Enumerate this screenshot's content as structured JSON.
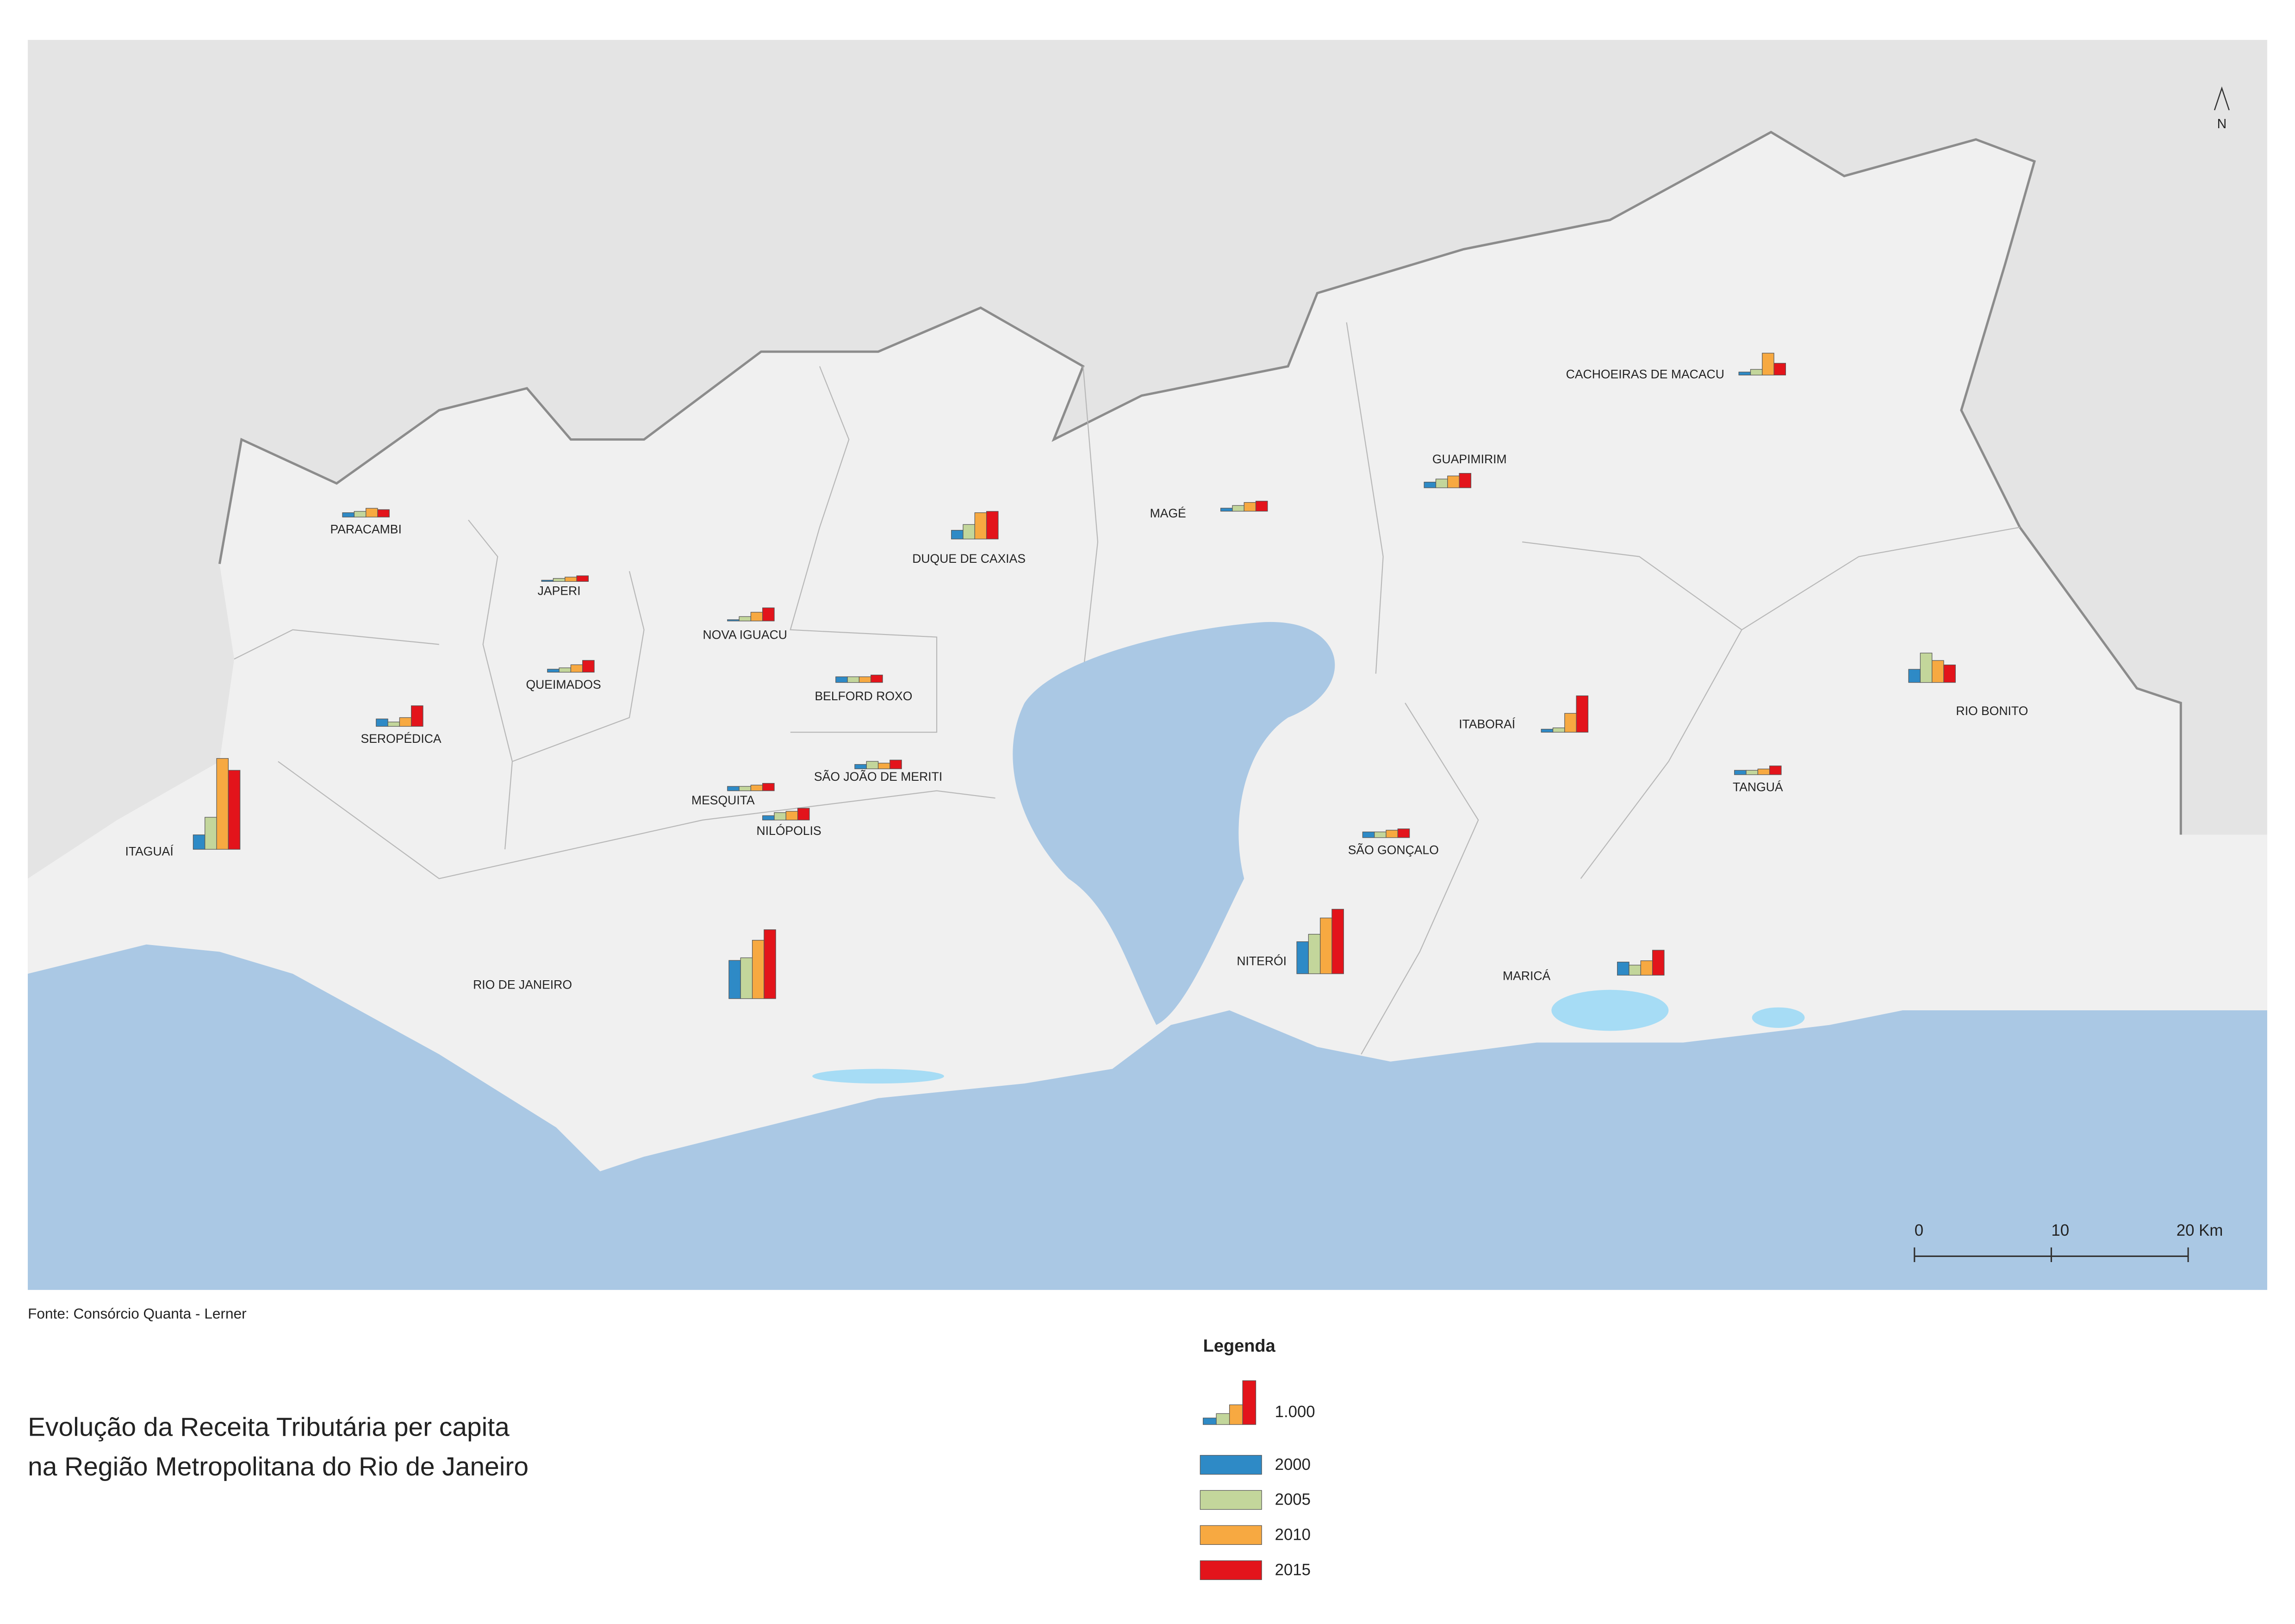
{
  "map": {
    "title_lines": [
      "Evolução da Receita Tributária per capita",
      "na Região Metropolitana do Rio de Janeiro"
    ],
    "source": "Fonte:  Consórcio Quanta - Lerner",
    "north": "N",
    "legend_title": "Legenda",
    "reference": {
      "value": 1000,
      "label": "1.000"
    },
    "series": [
      {
        "name": "2000",
        "color": "#2e8ac6"
      },
      {
        "name": "2005",
        "color": "#c3d69b"
      },
      {
        "name": "2010",
        "color": "#f7a941"
      },
      {
        "name": "2015",
        "color": "#e3141b"
      }
    ],
    "scale_bar": [
      0,
      10,
      {
        "value": 20,
        "label": "20 Km"
      }
    ],
    "municipalities": [
      {
        "name": "PARACAMBI",
        "values": [
          100,
          130,
          200,
          170
        ]
      },
      {
        "name": "ITAGUAÍ",
        "values": [
          330,
          730,
          2070,
          1800
        ]
      },
      {
        "name": "SEROPÉDICA",
        "values": [
          170,
          100,
          200,
          470
        ]
      },
      {
        "name": "JAPERI",
        "values": [
          30,
          70,
          100,
          130
        ]
      },
      {
        "name": "QUEIMADOS",
        "values": [
          70,
          100,
          170,
          270
        ]
      },
      {
        "name": "NOVA IGUACU",
        "values": [
          30,
          100,
          200,
          300
        ]
      },
      {
        "name": "BELFORD ROXO",
        "values": [
          130,
          130,
          130,
          170
        ]
      },
      {
        "name": "SÃO JOÃO DE MERITI",
        "values": [
          100,
          170,
          130,
          200
        ]
      },
      {
        "name": "MESQUITA",
        "values": [
          100,
          100,
          130,
          170
        ]
      },
      {
        "name": "NILÓPOLIS",
        "values": [
          100,
          170,
          200,
          270
        ]
      },
      {
        "name": "DUQUE DE CAXIAS",
        "values": [
          200,
          330,
          600,
          630
        ]
      },
      {
        "name": "MAGÉ",
        "values": [
          70,
          130,
          200,
          230
        ]
      },
      {
        "name": "GUAPIMIRIM",
        "values": [
          130,
          200,
          270,
          330
        ]
      },
      {
        "name": "CACHOEIRAS DE MACACU",
        "values": [
          70,
          130,
          500,
          270
        ]
      },
      {
        "name": "ITABORAÍ",
        "values": [
          70,
          100,
          430,
          830
        ]
      },
      {
        "name": "RIO BONITO",
        "values": [
          300,
          670,
          500,
          400
        ]
      },
      {
        "name": "TANGUÁ",
        "values": [
          100,
          100,
          130,
          200
        ]
      },
      {
        "name": "SÃO GONÇALO",
        "values": [
          130,
          130,
          170,
          200
        ]
      },
      {
        "name": "NITERÓI",
        "values": [
          730,
          900,
          1270,
          1470
        ]
      },
      {
        "name": "MARICÁ",
        "values": [
          300,
          230,
          330,
          570
        ]
      },
      {
        "name": "RIO DE JANEIRO",
        "values": [
          870,
          930,
          1330,
          1570
        ]
      }
    ]
  }
}
